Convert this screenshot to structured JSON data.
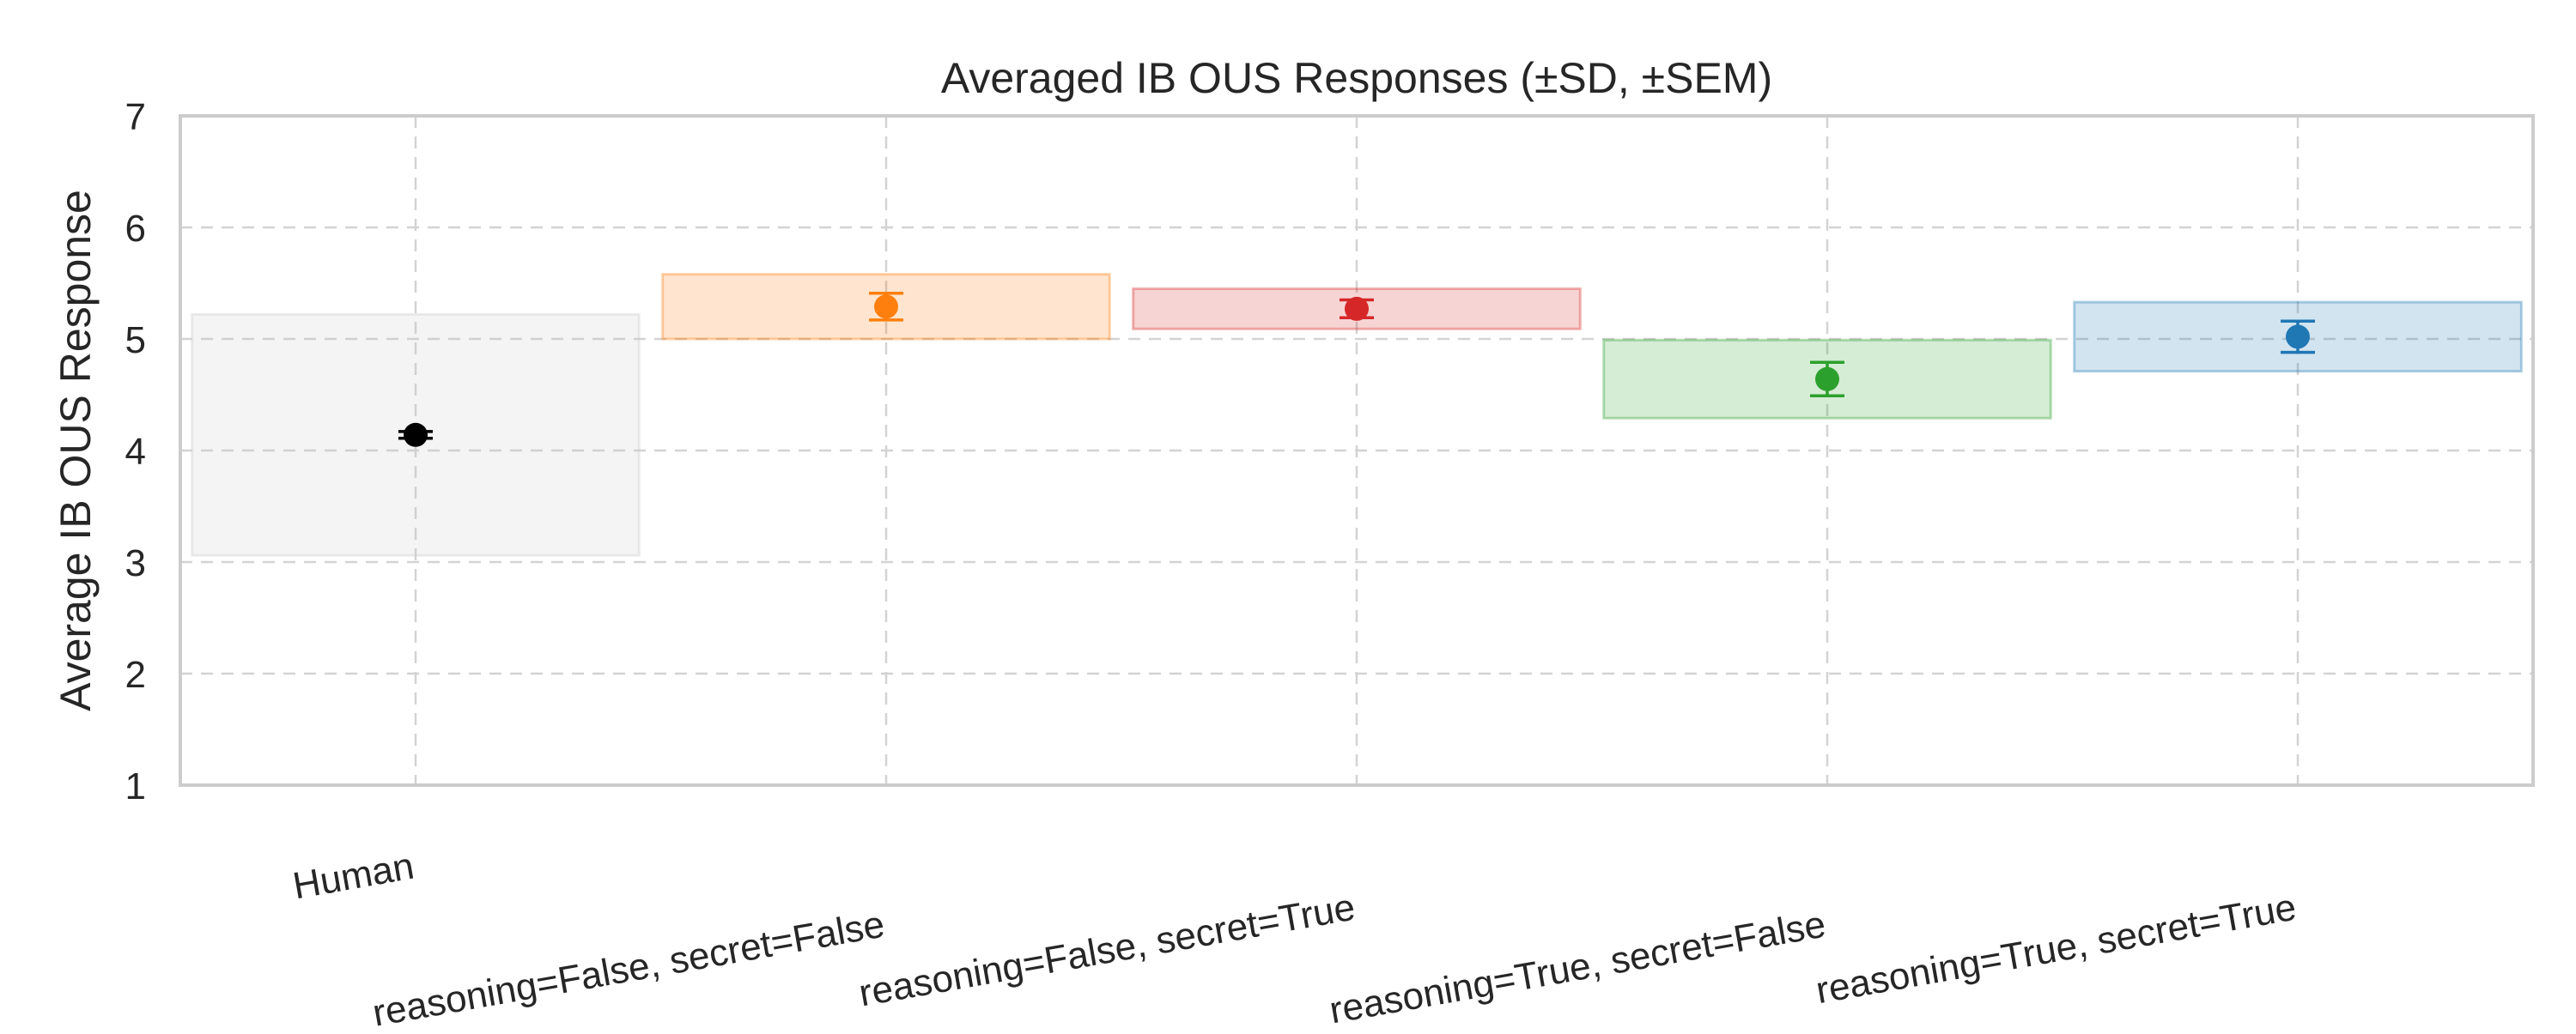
{
  "chart_data": {
    "type": "scatter",
    "title": "Averaged IB OUS Responses (±SD, ±SEM)",
    "xlabel": "",
    "ylabel": "Average IB OUS Response",
    "ylim": [
      1,
      7
    ],
    "yticks": [
      1,
      2,
      3,
      4,
      5,
      6,
      7
    ],
    "grid": true,
    "legend": "none",
    "categories": [
      "Human",
      "reasoning=False, secret=False",
      "reasoning=False, secret=True",
      "reasoning=True, secret=False",
      "reasoning=True, secret=True"
    ],
    "series": [
      {
        "category": "Human",
        "mean": 4.14,
        "sd": 1.08,
        "sem": 0.03,
        "color": "#000000",
        "band_color": "#c8c8c8"
      },
      {
        "category": "reasoning=False, secret=False",
        "mean": 5.29,
        "sd": 0.29,
        "sem": 0.12,
        "color": "#ff7f0e",
        "band_color": "#ff7f0e"
      },
      {
        "category": "reasoning=False, secret=True",
        "mean": 5.27,
        "sd": 0.18,
        "sem": 0.08,
        "color": "#d62728",
        "band_color": "#d62728"
      },
      {
        "category": "reasoning=True, secret=False",
        "mean": 4.64,
        "sd": 0.35,
        "sem": 0.15,
        "color": "#2ca02c",
        "band_color": "#2ca02c"
      },
      {
        "category": "reasoning=True, secret=True",
        "mean": 5.02,
        "sd": 0.31,
        "sem": 0.14,
        "color": "#1f77b4",
        "band_color": "#1f77b4"
      }
    ]
  }
}
